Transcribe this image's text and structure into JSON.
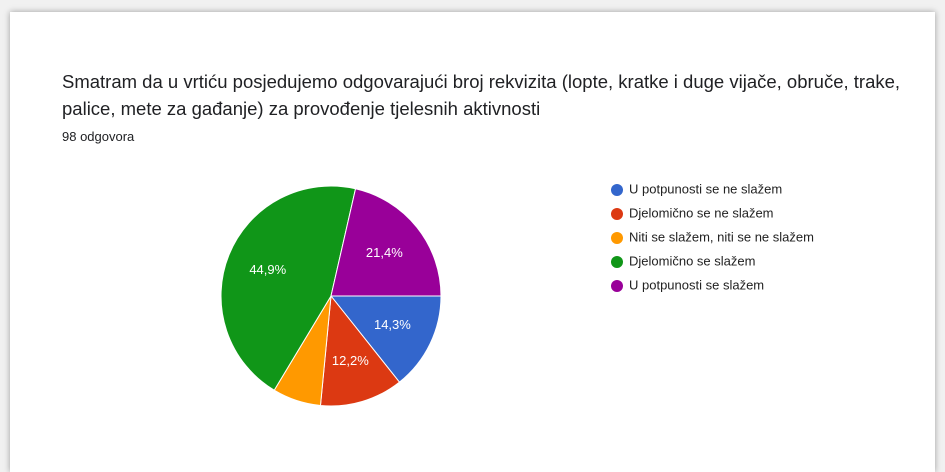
{
  "chart_data": {
    "type": "pie",
    "title": "Smatram da u vrtiću posjedujemo odgovarajući broj rekvizita (lopte, kratke i duge vijače, obruče, trake, palice, mete za gađanje) za provođenje tjelesnih aktivnosti",
    "subtitle": "98 odgovora",
    "categories": [
      "U potpunosti se ne slažem",
      "Djelomično se ne slažem",
      "Niti se slažem, niti se ne slažem",
      "Djelomično se slažem",
      "U potpunosti se slažem"
    ],
    "values": [
      14.3,
      12.2,
      7.1,
      44.9,
      21.4
    ],
    "value_labels": [
      "14,3%",
      "12,2%",
      null,
      "44,9%",
      "21,4%"
    ],
    "colors": [
      "#3366cc",
      "#dc3912",
      "#ff9900",
      "#109618",
      "#990099"
    ],
    "legend": "right"
  }
}
